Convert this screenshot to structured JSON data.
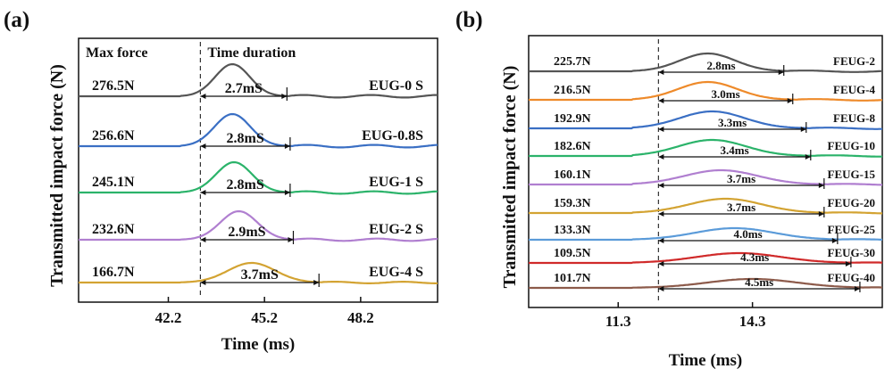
{
  "chart_data": [
    {
      "type": "line",
      "panel_label": "(a)",
      "xlabel": "Time (ms)",
      "ylabel": "Transmitted impact force (N)",
      "xticks": [
        "42.2",
        "45.2",
        "48.2"
      ],
      "xlim": [
        39.4,
        50.6
      ],
      "header_left": "Max force",
      "header_right": "Time duration",
      "marker_line_time": 43.2,
      "series": [
        {
          "name": "EUG-0 S",
          "max_force": "276.5N",
          "duration_label": "2.7mS",
          "start": 43.2,
          "duration": 2.7,
          "peak_time": 44.2,
          "color": "#555555"
        },
        {
          "name": "EUG-0.8S",
          "max_force": "256.6N",
          "duration_label": "2.8mS",
          "start": 43.2,
          "duration": 2.8,
          "peak_time": 44.2,
          "color": "#3a6fc4"
        },
        {
          "name": "EUG-1 S",
          "max_force": "245.1N",
          "duration_label": "2.8mS",
          "start": 43.2,
          "duration": 2.8,
          "peak_time": 44.25,
          "color": "#2bb36a"
        },
        {
          "name": "EUG-2 S",
          "max_force": "232.6N",
          "duration_label": "2.9mS",
          "start": 43.2,
          "duration": 2.9,
          "peak_time": 44.4,
          "color": "#b07fd0"
        },
        {
          "name": "EUG-4 S",
          "max_force": "166.7N",
          "duration_label": "3.7mS",
          "start": 43.2,
          "duration": 3.7,
          "peak_time": 44.8,
          "color": "#d3a332"
        }
      ]
    },
    {
      "type": "line",
      "panel_label": "(b)",
      "xlabel": "Time (ms)",
      "ylabel": "Transmitted impact force (N)",
      "xticks": [
        "11.3",
        "14.3"
      ],
      "xlim": [
        9.3,
        17.2
      ],
      "marker_line_time": 12.2,
      "series": [
        {
          "name": "FEUG-2",
          "max_force": "225.7N",
          "duration_label": "2.8ms",
          "start": 12.2,
          "duration": 2.8,
          "peak_time": 13.3,
          "color": "#555555"
        },
        {
          "name": "FEUG-4",
          "max_force": "216.5N",
          "duration_label": "3.0ms",
          "start": 12.2,
          "duration": 3.0,
          "peak_time": 13.3,
          "color": "#ee8a2a"
        },
        {
          "name": "FEUG-8",
          "max_force": "192.9N",
          "duration_label": "3.3ms",
          "start": 12.2,
          "duration": 3.3,
          "peak_time": 13.4,
          "color": "#3a6fc4"
        },
        {
          "name": "FEUG-10",
          "max_force": "182.6N",
          "duration_label": "3.4ms",
          "start": 12.2,
          "duration": 3.4,
          "peak_time": 13.4,
          "color": "#2bb36a"
        },
        {
          "name": "FEUG-15",
          "max_force": "160.1N",
          "duration_label": "3.7ms",
          "start": 12.2,
          "duration": 3.7,
          "peak_time": 13.6,
          "color": "#b07fd0"
        },
        {
          "name": "FEUG-20",
          "max_force": "159.3N",
          "duration_label": "3.7ms",
          "start": 12.2,
          "duration": 3.7,
          "peak_time": 13.7,
          "color": "#d3a332"
        },
        {
          "name": "FEUG-25",
          "max_force": "133.3N",
          "duration_label": "4.0ms",
          "start": 12.2,
          "duration": 4.0,
          "peak_time": 13.9,
          "color": "#5b9bd9"
        },
        {
          "name": "FEUG-30",
          "max_force": "109.5N",
          "duration_label": "4.3ms",
          "start": 12.2,
          "duration": 4.3,
          "peak_time": 14.0,
          "color": "#d02a2a"
        },
        {
          "name": "FEUG-40",
          "max_force": "101.7N",
          "duration_label": "4.5ms",
          "start": 12.2,
          "duration": 4.5,
          "peak_time": 14.3,
          "color": "#8c5a4a"
        }
      ]
    }
  ]
}
